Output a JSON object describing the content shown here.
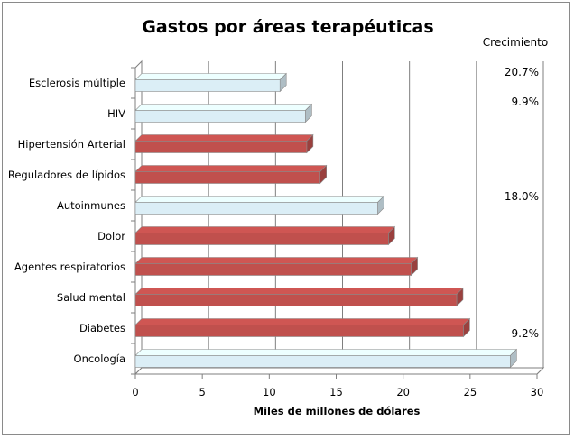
{
  "chart_data": {
    "type": "bar",
    "orientation": "horizontal",
    "title": "Gastos por áreas terapéuticas",
    "xlabel": "Miles de millones de dólares",
    "ylabel": "",
    "xlim": [
      0,
      30
    ],
    "x_ticks": [
      0,
      5,
      10,
      15,
      20,
      25,
      30
    ],
    "grid": "vertical major",
    "categories": [
      "Esclerosis múltiple",
      "HIV",
      "Hipertensión Arterial",
      "Reguladores de lípidos",
      "Autoinmunes",
      "Dolor",
      "Agentes respiratorios",
      "Salud mental",
      "Diabetes",
      "Oncología"
    ],
    "values": [
      10.8,
      12.7,
      12.8,
      13.8,
      18.1,
      18.9,
      20.6,
      24.0,
      24.5,
      28.0
    ],
    "bar_colors": [
      "#dbeef6",
      "#dbeef6",
      "#c0504d",
      "#c0504d",
      "#dbeef6",
      "#c0504d",
      "#c0504d",
      "#c0504d",
      "#c0504d",
      "#dbeef6"
    ],
    "growth_header": "Crecimiento",
    "growth_annotations": [
      {
        "category": "Esclerosis múltiple",
        "text": "20.7%"
      },
      {
        "category": "HIV",
        "text": "9.9%"
      },
      {
        "category": "Autoinmunes",
        "text": "18.0%"
      },
      {
        "category": "Oncología",
        "text": "9.2%"
      }
    ]
  }
}
